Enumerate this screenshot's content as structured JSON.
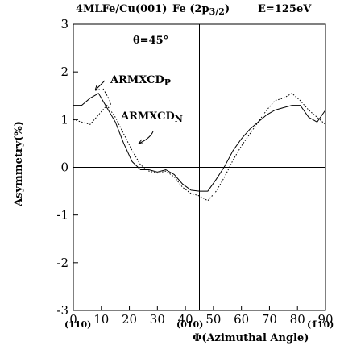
{
  "chart_data": {
    "type": "line",
    "title": "4MLFe/Cu(001)",
    "subtitle_element": "Fe (2p",
    "subtitle_sub": "3/2",
    "subtitle_close": ")",
    "energy": "E=125eV",
    "angle_label": "θ=45°",
    "ylabel": "Asymmetry(%)",
    "xlabel": "Φ(Azimuthal Angle)",
    "xlim": [
      0,
      90
    ],
    "ylim": [
      -3,
      3
    ],
    "x_ticks": [
      "0",
      "10",
      "20",
      "30",
      "40",
      "50",
      "60",
      "70",
      "80",
      "90"
    ],
    "y_ticks": [
      "3",
      "2",
      "1",
      "0",
      "-1",
      "-2",
      "-3"
    ],
    "direction_labels": [
      "(110)",
      "(010)",
      "(1̄10)"
    ],
    "grid": "cross at x=45 and y=0",
    "series": [
      {
        "name": "ARMXCDP",
        "name_base": "ARMXCD",
        "name_sub": "P",
        "style": "solid",
        "x": [
          0,
          3,
          6,
          9,
          12,
          15,
          18,
          21,
          24,
          27,
          30,
          33,
          36,
          39,
          42,
          45,
          48,
          51,
          54,
          57,
          60,
          63,
          66,
          69,
          72,
          75,
          78,
          81,
          84,
          87,
          90
        ],
        "y": [
          1.3,
          1.3,
          1.45,
          1.55,
          1.25,
          0.95,
          0.5,
          0.12,
          -0.05,
          -0.05,
          -0.1,
          -0.05,
          -0.15,
          -0.35,
          -0.48,
          -0.5,
          -0.5,
          -0.25,
          0.02,
          0.35,
          0.6,
          0.8,
          0.95,
          1.1,
          1.2,
          1.25,
          1.3,
          1.3,
          1.05,
          0.95,
          1.2
        ]
      },
      {
        "name": "ARMXCDN",
        "name_base": "ARMXCD",
        "name_sub": "N",
        "style": "dotted",
        "x": [
          0,
          3,
          6,
          9,
          12,
          15,
          18,
          21,
          24,
          27,
          30,
          33,
          36,
          39,
          42,
          45,
          48,
          51,
          54,
          57,
          60,
          63,
          66,
          69,
          72,
          75,
          78,
          81,
          84,
          87,
          90
        ],
        "y": [
          1.0,
          0.95,
          0.9,
          1.1,
          1.3,
          1.05,
          0.7,
          0.35,
          0.05,
          -0.08,
          -0.12,
          -0.08,
          -0.2,
          -0.42,
          -0.55,
          -0.6,
          -0.7,
          -0.5,
          -0.2,
          0.15,
          0.45,
          0.7,
          0.95,
          1.2,
          1.4,
          1.45,
          1.55,
          1.4,
          1.2,
          1.05,
          0.9
        ]
      }
    ]
  }
}
